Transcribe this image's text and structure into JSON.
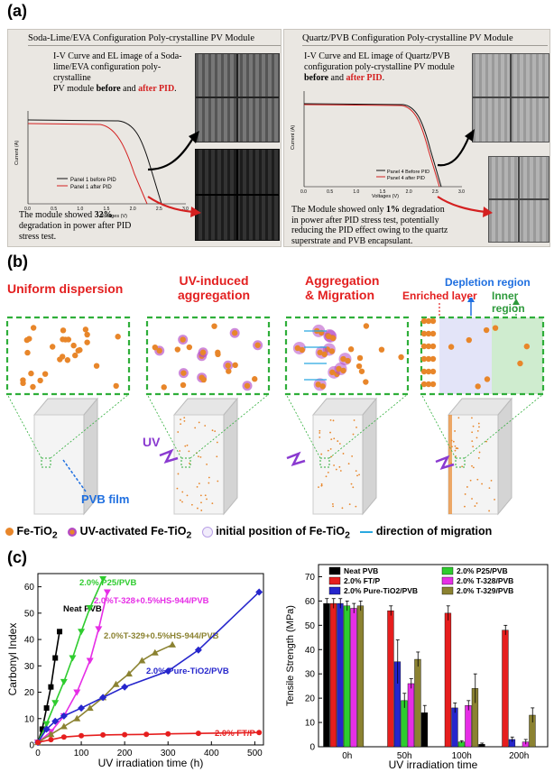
{
  "panels": {
    "a": "(a)",
    "b": "(b)",
    "c": "(c)"
  },
  "panel_a": {
    "left": {
      "header": "Soda-Lime/EVA Configuration Poly-crystalline PV Module",
      "desc_1": "I-V Curve and EL image of a Soda-",
      "desc_2": "lime/EVA configuration poly-crystalline",
      "desc_3a": "PV module ",
      "desc_3b": "before",
      "desc_3c": " and ",
      "desc_3d": "after PID",
      "desc_3e": ".",
      "legend": [
        "Panel 1 before PID",
        "Panel 1 after PID"
      ],
      "xlabel": "Voltages (V)",
      "ylabel": "Current (A)",
      "xticks": [
        "0.0",
        "0.5",
        "1.0",
        "1.5",
        "2.0",
        "2.5",
        "3.0"
      ],
      "conc_1a": "The  module   showed  ",
      "conc_1b": "32%",
      "conc_2": "degradation  in  power  after  PID",
      "conc_3": "stress test."
    },
    "right": {
      "header": "Quartz/PVB Configuration Poly-crystalline PV Module",
      "desc_1": "I-V Curve and EL image of Quartz/PVB",
      "desc_2": "configuration poly-crystalline PV module",
      "desc_3a": "before",
      "desc_3b": " and ",
      "desc_3c": "after PID",
      "desc_3d": ".",
      "legend": [
        "Panel 4 Before PID",
        "Panel 4 after PID"
      ],
      "xlabel": "Voltages (V)",
      "ylabel": "Current (A)",
      "xticks": [
        "0.0",
        "0.5",
        "1.0",
        "1.5",
        "2.0",
        "2.5",
        "3.0"
      ],
      "conc_1a": "The Module showed only ",
      "conc_1b": "1%",
      "conc_1c": " degradation",
      "conc_2": "in power after PID stress test, potentially",
      "conc_3": "reducing the PID effect owing to the quartz",
      "conc_4": "superstrate and PVB encapsulant."
    }
  },
  "panel_b": {
    "stage_labels": [
      "Uniform dispersion",
      "UV-induced",
      "aggregation",
      "Aggregation",
      "& Migration"
    ],
    "region_labels": {
      "depletion": "Depletion region",
      "enriched": "Enriched layer",
      "inner": "Inner region"
    },
    "uv": "UV",
    "pvb_film": "PVB film",
    "legend": {
      "fe": "Fe-TiO",
      "uv_fe": "UV-activated Fe-TiO",
      "initial": "initial position of Fe-TiO",
      "sub": "2",
      "direction": "direction of migration"
    },
    "colors": {
      "red_text": "#e32020",
      "blue_text": "#1f6fe0",
      "green_text": "#2e9a3c",
      "particle": "#e8862a",
      "halo": "#b44ac4"
    }
  },
  "chart_data": [
    {
      "type": "line",
      "xlabel": "UV irradiation time (h)",
      "ylabel": "Carbonyl Index",
      "xlim": [
        0,
        520
      ],
      "ylim": [
        0,
        65
      ],
      "xticks": [
        0,
        100,
        200,
        300,
        400,
        500
      ],
      "yticks": [
        0,
        10,
        20,
        30,
        40,
        50,
        60
      ],
      "series": [
        {
          "name": "Neat PVB",
          "color": "#000000",
          "marker": "square",
          "x": [
            0,
            10,
            20,
            30,
            40,
            50
          ],
          "y": [
            1,
            6,
            14,
            22,
            33,
            43
          ]
        },
        {
          "name": "2.0% P25/PVB",
          "color": "#2ecc2e",
          "marker": "triangle-down",
          "x": [
            0,
            20,
            40,
            60,
            80,
            100,
            120,
            150
          ],
          "y": [
            1,
            8,
            16,
            24,
            33,
            43,
            52,
            63
          ]
        },
        {
          "name": "2.0%T-328+0.5%HS-944/PVB",
          "color": "#e62ee6",
          "marker": "triangle-down",
          "x": [
            0,
            30,
            60,
            90,
            120,
            140,
            160
          ],
          "y": [
            1,
            5,
            11,
            20,
            32,
            44,
            58
          ]
        },
        {
          "name": "2.0%T-329+0.5%HS-944/PVB",
          "color": "#8b8231",
          "marker": "triangle-up",
          "x": [
            0,
            30,
            60,
            90,
            120,
            150,
            180,
            210,
            240,
            270,
            310
          ],
          "y": [
            1,
            4,
            7,
            10,
            14,
            18,
            23,
            27,
            32,
            35,
            38
          ]
        },
        {
          "name": "2.0% Pure-TiO2/PVB",
          "color": "#2626cc",
          "marker": "diamond",
          "x": [
            0,
            20,
            40,
            60,
            100,
            150,
            200,
            300,
            370,
            510
          ],
          "y": [
            1,
            6,
            9,
            11,
            14,
            18,
            22,
            28,
            36,
            58
          ]
        },
        {
          "name": "2.0% FT/P",
          "color": "#e61e1e",
          "marker": "circle",
          "x": [
            0,
            30,
            60,
            100,
            150,
            200,
            250,
            300,
            370,
            510
          ],
          "y": [
            1,
            2,
            3,
            3.5,
            3.8,
            3.9,
            4,
            4.2,
            4.4,
            4.7
          ]
        }
      ]
    },
    {
      "type": "bar",
      "xlabel": "UV irradiation time",
      "ylabel": "Tensile Strength (MPa)",
      "ylim": [
        0,
        75
      ],
      "yticks": [
        0,
        10,
        20,
        30,
        40,
        50,
        60,
        70
      ],
      "categories": [
        "0h",
        "50h",
        "100h",
        "200h"
      ],
      "series": [
        {
          "name": "Neat PVB",
          "color": "#000000",
          "values": [
            59,
            0,
            0,
            0
          ],
          "errors": [
            2,
            0,
            0,
            0
          ]
        },
        {
          "name": "2.0% FT/P",
          "color": "#e61e1e",
          "values": [
            59,
            56,
            55,
            48
          ],
          "errors": [
            2,
            2,
            3,
            2
          ]
        },
        {
          "name": "2.0% Pure-TiO2/PVB",
          "color": "#2626cc",
          "values": [
            59,
            35,
            16,
            3
          ],
          "errors": [
            2,
            9,
            2,
            1
          ]
        },
        {
          "name": "2.0% P25/PVB",
          "color": "#2ecc2e",
          "values": [
            58,
            19,
            2,
            0
          ],
          "errors": [
            2,
            3,
            0.5,
            0
          ]
        },
        {
          "name": "2.0% T-328/PVB",
          "color": "#e62ee6",
          "values": [
            57,
            26,
            17,
            2
          ],
          "errors": [
            2,
            2,
            2,
            1
          ]
        },
        {
          "name": "2.0% T-329/PVB",
          "color": "#8b8231",
          "values": [
            58,
            36,
            24,
            13
          ],
          "errors": [
            2,
            3,
            6,
            3
          ]
        },
        {
          "name": "",
          "color": "#000000",
          "values": [
            0,
            14,
            1,
            0
          ],
          "errors": [
            0,
            3,
            0.5,
            0
          ]
        }
      ]
    }
  ]
}
